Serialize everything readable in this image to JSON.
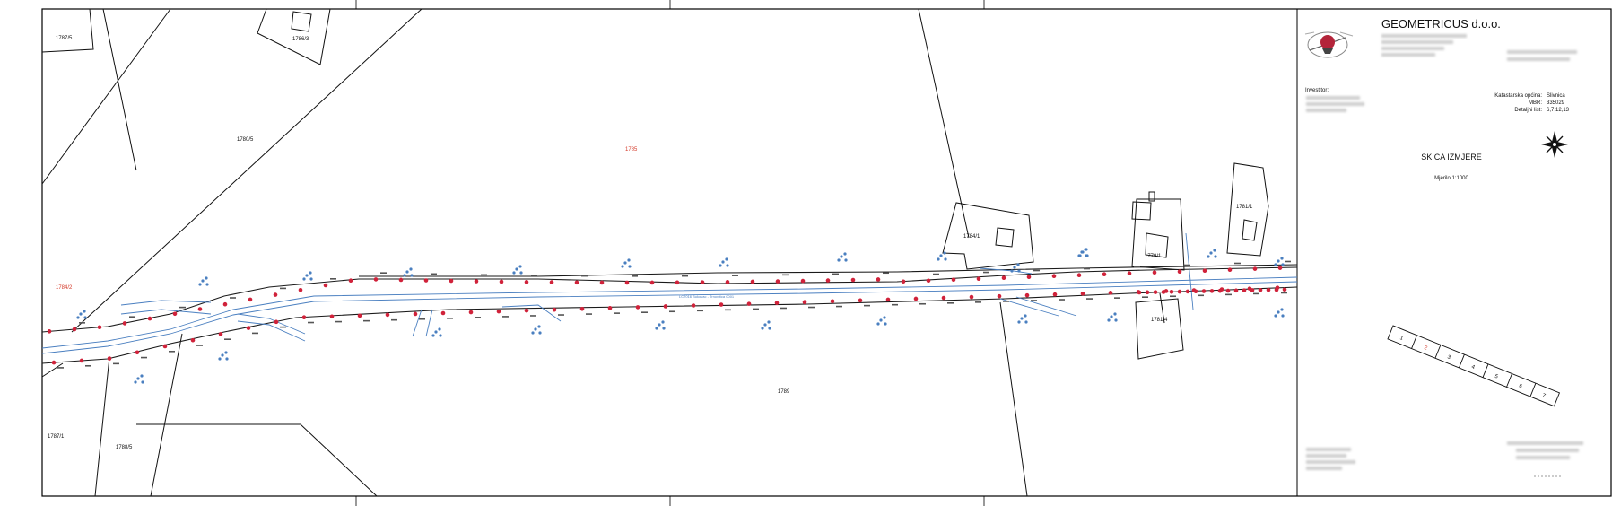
{
  "company": {
    "name": "GEOMETRICUS d.o.o."
  },
  "investor": {
    "label": "Investitor:"
  },
  "cadastre": {
    "municipality_label": "Katastarska općina:",
    "municipality_value": "Slivnica",
    "mbr_label": "MBR:",
    "mbr_value": "335029",
    "sheet_label": "Detaljni list:",
    "sheet_value": "6,7,12,13"
  },
  "sketch": {
    "title": "SKICA IZMJERE",
    "scale": "Mjerilo 1:1000"
  },
  "sheet_index": [
    "1",
    "2",
    "3",
    "4",
    "5",
    "6",
    "7"
  ],
  "colors": {
    "road": "#222222",
    "water": "#4a7fc0",
    "points": "#d0223a",
    "text_red": "#d43a2a"
  },
  "map": {
    "parcels": [
      {
        "id": "p1",
        "label": "1787/5"
      },
      {
        "id": "p2",
        "label": "1786/3"
      },
      {
        "id": "p3",
        "label": "1780/5"
      },
      {
        "id": "p4",
        "label": "1785"
      },
      {
        "id": "p5",
        "label": "1784/2"
      },
      {
        "id": "p6",
        "label": "1784/1"
      },
      {
        "id": "p7",
        "label": "1779/1"
      },
      {
        "id": "p8",
        "label": "1789"
      },
      {
        "id": "p9",
        "label": "1781/1"
      },
      {
        "id": "p10",
        "label": "1781/4"
      },
      {
        "id": "p11",
        "label": "1787/1"
      },
      {
        "id": "p12",
        "label": "1788/5"
      }
    ],
    "road_label": "LC7016 Bukovac - Trnovitica 0001"
  }
}
